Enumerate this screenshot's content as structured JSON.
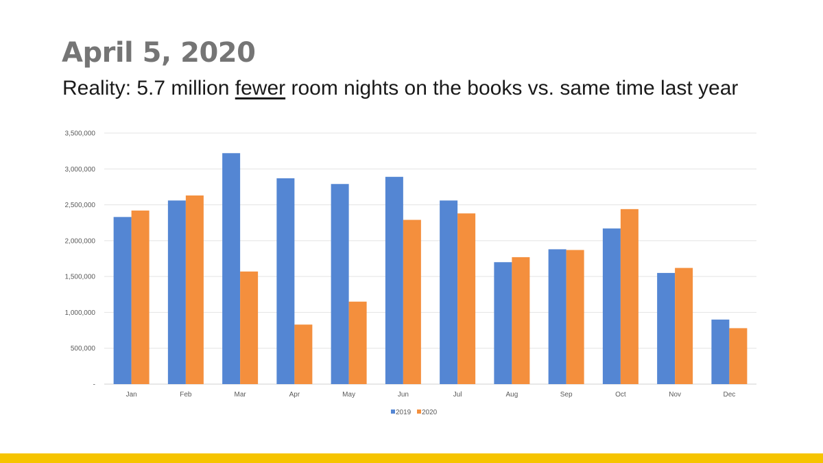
{
  "slide": {
    "title": "April 5, 2020",
    "subtitle_pre": "Reality: 5.7 million ",
    "subtitle_emph": "fewer",
    "subtitle_post": " room nights on the books vs. same time last year"
  },
  "colors": {
    "series_2019": "#5486d3",
    "series_2020": "#f48f3d",
    "accent_bar": "#f6c400",
    "gridline": "#e3e3e3",
    "title": "#757575"
  },
  "chart_data": {
    "type": "bar",
    "title": "",
    "xlabel": "",
    "ylabel": "",
    "categories": [
      "Jan",
      "Feb",
      "Mar",
      "Apr",
      "May",
      "Jun",
      "Jul",
      "Aug",
      "Sep",
      "Oct",
      "Nov",
      "Dec"
    ],
    "series": [
      {
        "name": "2019",
        "color": "#5486d3",
        "values": [
          2330000,
          2560000,
          3220000,
          2870000,
          2790000,
          2890000,
          2560000,
          1700000,
          1880000,
          2170000,
          1550000,
          900000
        ]
      },
      {
        "name": "2020",
        "color": "#f48f3d",
        "values": [
          2420000,
          2630000,
          1570000,
          830000,
          1150000,
          2290000,
          2380000,
          1770000,
          1870000,
          2440000,
          1620000,
          780000
        ]
      }
    ],
    "ylim": [
      0,
      3500000
    ],
    "y_ticks": [
      {
        "value": 0,
        "label": "-"
      },
      {
        "value": 500000,
        "label": "500,000"
      },
      {
        "value": 1000000,
        "label": "1,000,000"
      },
      {
        "value": 1500000,
        "label": "1,500,000"
      },
      {
        "value": 2000000,
        "label": "2,000,000"
      },
      {
        "value": 2500000,
        "label": "2,500,000"
      },
      {
        "value": 3000000,
        "label": "3,000,000"
      },
      {
        "value": 3500000,
        "label": "3,500,000"
      }
    ],
    "grid": true,
    "legend_position": "bottom-center"
  }
}
